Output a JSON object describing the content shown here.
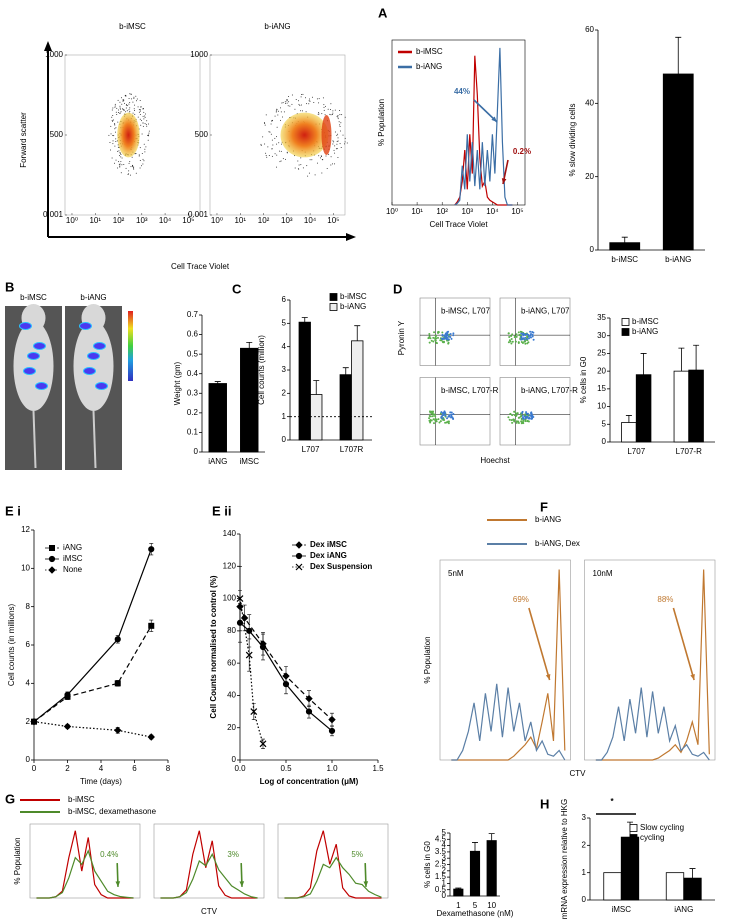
{
  "chart_data": [
    {
      "type": "flow",
      "panel": "A",
      "titles": [
        "b-iMSC",
        "b-iANG"
      ],
      "ylabel": "Forward scatter",
      "xlabel": "Cell Trace Violet",
      "ylim": [
        0,
        1000
      ],
      "yticks": [
        0.001,
        500,
        1000
      ],
      "xlim": [
        -0.3,
        5.5
      ],
      "xticks": [
        {
          "value": 0,
          "label": "10⁰"
        },
        {
          "value": 1,
          "label": "10¹"
        },
        {
          "value": 2,
          "label": "10²"
        },
        {
          "value": 3,
          "label": "10³"
        },
        {
          "value": 4,
          "label": "10⁴"
        },
        {
          "value": 5,
          "label": "10⁵"
        }
      ]
    },
    {
      "type": "histogram",
      "ylabel": "% Population",
      "xlabel": "Cell Trace Violet",
      "x": [
        2.5,
        2.6,
        2.7,
        2.8,
        2.9,
        3.0,
        3.1,
        3.2,
        3.3,
        3.4,
        3.5,
        3.6,
        3.7,
        3.8,
        3.9,
        4.0,
        4.1,
        4.2,
        4.3,
        4.4,
        4.5,
        4.6,
        4.7,
        4.8
      ],
      "series": [
        {
          "name": "b-iMSC",
          "color": "#c00000",
          "values": [
            0,
            2,
            5,
            15,
            35,
            10,
            45,
            20,
            95,
            70,
            30,
            12,
            15,
            5,
            3,
            2,
            1,
            0,
            0,
            0,
            0,
            0,
            0,
            0
          ]
        },
        {
          "name": "b-iANG",
          "color": "#3b6ea5",
          "values": [
            0,
            1,
            3,
            25,
            10,
            45,
            15,
            40,
            12,
            35,
            10,
            40,
            12,
            35,
            15,
            45,
            20,
            60,
            100,
            40,
            5,
            0,
            0,
            0
          ]
        }
      ],
      "annotations": [
        {
          "text": "44%",
          "color": "#3b6ea5"
        },
        {
          "text": "0.2%",
          "color": "#a01010"
        }
      ],
      "xlim": [
        0,
        5.3
      ],
      "ylim": [
        0,
        105
      ],
      "xticks": [
        {
          "value": 0,
          "label": "10⁰"
        },
        {
          "value": 1,
          "label": "10¹"
        },
        {
          "value": 2,
          "label": "10²"
        },
        {
          "value": 3,
          "label": "10³"
        },
        {
          "value": 4,
          "label": "10⁴"
        },
        {
          "value": 5,
          "label": "10⁵"
        }
      ]
    },
    {
      "type": "bar",
      "ylabel": "% slow dividing cells",
      "categories": [
        "b-iMSC",
        "b-iANG"
      ],
      "values": [
        2,
        48
      ],
      "errors": [
        1.5,
        10
      ],
      "color": "#000000",
      "ylim": [
        0,
        60
      ],
      "yticks": [
        0,
        20,
        40,
        60
      ]
    },
    {
      "type": "mouse-image",
      "panel": "B",
      "titles": [
        "b-iMSC",
        "b-iANG"
      ]
    },
    {
      "type": "bar",
      "ylabel": "Weight (gm)",
      "categories": [
        "iANG",
        "iMSC"
      ],
      "values": [
        0.35,
        0.53
      ],
      "errors": [
        0.01,
        0.03
      ],
      "color": "#000000",
      "ylim": [
        0,
        0.7
      ],
      "yticks": [
        0,
        0.1,
        0.2,
        0.3,
        0.4,
        0.5,
        0.6,
        0.7
      ]
    },
    {
      "type": "bar",
      "panel": "C",
      "ylabel": "Cell counts (million)",
      "categories": [
        "L707",
        "L707R"
      ],
      "series": [
        {
          "name": "b-iMSC",
          "color": "#000000",
          "values": [
            5.05,
            2.8
          ],
          "errors": [
            0.2,
            0.3
          ]
        },
        {
          "name": "b-iANG",
          "color": "#eeeeee",
          "values": [
            1.95,
            4.25
          ],
          "errors": [
            0.6,
            0.65
          ]
        }
      ],
      "reference_line": 1,
      "ylim": [
        0,
        6
      ],
      "yticks": [
        0,
        1,
        2,
        3,
        4,
        5,
        6
      ]
    },
    {
      "type": "quadrant",
      "panel": "D",
      "labels": [
        "b-iMSC, L707",
        "b-iANG, L707",
        "b-iMSC, L707-R",
        "b-iANG, L707-R"
      ],
      "ylabel": "Pyronin Y",
      "xlabel": "Hoechst"
    },
    {
      "type": "bar",
      "ylabel": "% cells in G0",
      "categories": [
        "L707",
        "L707-R"
      ],
      "series": [
        {
          "name": "b-iMSC",
          "color": "#ffffff",
          "values": [
            5.5,
            20
          ],
          "errors": [
            2,
            6.5
          ]
        },
        {
          "name": "b-iANG",
          "color": "#000000",
          "values": [
            19,
            20.3
          ],
          "errors": [
            6,
            7
          ]
        }
      ],
      "ylim": [
        0,
        35
      ],
      "yticks": [
        0,
        5,
        10,
        15,
        20,
        25,
        30,
        35
      ]
    },
    {
      "type": "line",
      "panel": "E i",
      "ylabel": "Cell counts (in millions)",
      "xlabel": "Time (days)",
      "x": [
        0,
        2,
        5,
        7
      ],
      "series": [
        {
          "name": "iANG",
          "color": "#000000",
          "line_style": "dashed",
          "marker": "square",
          "values": [
            2,
            3.3,
            4,
            7
          ],
          "errors": [
            0.1,
            0.15,
            0.15,
            0.3
          ]
        },
        {
          "name": "iMSC",
          "color": "#000000",
          "line_style": "solid",
          "marker": "circle",
          "values": [
            2,
            3.4,
            6.3,
            11
          ],
          "errors": [
            0.1,
            0.15,
            0.2,
            0.3
          ]
        },
        {
          "name": "None",
          "color": "#000000",
          "line_style": "dotted",
          "marker": "diamond",
          "values": [
            2,
            1.75,
            1.55,
            1.2
          ],
          "errors": [
            0.05,
            0.1,
            0.15,
            0.1
          ]
        }
      ],
      "xlim": [
        0,
        8
      ],
      "xticks": [
        0,
        2,
        4,
        6,
        8
      ],
      "ylim": [
        0,
        12
      ],
      "yticks": [
        0,
        2,
        4,
        6,
        8,
        10,
        12
      ]
    },
    {
      "type": "line",
      "panel": "E ii",
      "ylabel": "Cell Counts normalised to control (%)",
      "xlabel": "Log of concentration (μM)",
      "series": [
        {
          "name": "Dex iMSC",
          "color": "#000000",
          "line_style": "dashed",
          "marker": "diamond",
          "x": [
            0,
            0.05,
            0.25,
            0.5,
            0.75,
            1
          ],
          "values": [
            95,
            88,
            72,
            52,
            38,
            25
          ],
          "errors": [
            10,
            8,
            7,
            6,
            5,
            4
          ]
        },
        {
          "name": "Dex iANG",
          "color": "#000000",
          "line_style": "solid",
          "marker": "circle",
          "x": [
            0,
            0.1,
            0.25,
            0.5,
            0.75,
            1
          ],
          "values": [
            85,
            80,
            70,
            47,
            30,
            18
          ],
          "errors": [
            12,
            10,
            8,
            6,
            4,
            3
          ]
        },
        {
          "name": "Dex Suspension",
          "color": "#000000",
          "line_style": "dotted",
          "marker": "cross",
          "x": [
            0,
            0.1,
            0.15,
            0.25
          ],
          "values": [
            100,
            65,
            30,
            10
          ],
          "errors": [
            20,
            10,
            5,
            3
          ]
        }
      ],
      "xlim": [
        0,
        1.5
      ],
      "xticks": [
        {
          "value": 0,
          "label": "0.0"
        },
        0.5,
        {
          "value": 1,
          "label": "1.0"
        },
        1.5
      ],
      "ylim": [
        0,
        140
      ],
      "yticks": [
        0,
        20,
        40,
        60,
        80,
        100,
        120,
        140
      ]
    },
    {
      "type": "histogram-panels",
      "panel": "F",
      "ylabel": "% Population",
      "xlabel": "CTV",
      "series": [
        {
          "name": "b-iANG",
          "color": "#c07830"
        },
        {
          "name": "b-iANG, Dex",
          "color": "#5b7fa6"
        }
      ],
      "x": [
        3.0,
        3.1,
        3.2,
        3.3,
        3.4,
        3.5,
        3.6,
        3.7,
        3.8,
        3.9,
        4.0,
        4.1,
        4.2,
        4.3,
        4.4,
        4.5,
        4.6,
        4.7,
        4.8,
        4.9,
        5.0
      ],
      "panels": [
        {
          "label": "5nM",
          "annotation": "69%",
          "series": [
            {
              "values": [
                0,
                0,
                0,
                0,
                0,
                0,
                0,
                0,
                0,
                0,
                0,
                2,
                5,
                8,
                12,
                6,
                20,
                35,
                10,
                100,
                5
              ]
            },
            {
              "values": [
                0,
                0,
                5,
                15,
                30,
                10,
                35,
                15,
                40,
                12,
                38,
                15,
                30,
                10,
                20,
                5,
                10,
                3,
                2,
                5,
                0
              ]
            }
          ]
        },
        {
          "label": "10nM",
          "annotation": "88%",
          "series": [
            {
              "values": [
                0,
                0,
                0,
                0,
                0,
                0,
                0,
                0,
                0,
                0,
                0,
                1,
                3,
                5,
                8,
                4,
                10,
                20,
                8,
                100,
                3
              ]
            },
            {
              "values": [
                0,
                0,
                4,
                12,
                28,
                10,
                32,
                14,
                38,
                12,
                36,
                14,
                28,
                10,
                18,
                5,
                8,
                3,
                2,
                4,
                0
              ]
            }
          ]
        }
      ],
      "xlim": [
        2.8,
        5.1
      ],
      "ylim": [
        0,
        105
      ]
    },
    {
      "type": "histogram-panels",
      "panel": "G",
      "ylabel": "% Population",
      "xlabel": "CTV",
      "series": [
        {
          "name": "b-iMSC",
          "color": "#c00000"
        },
        {
          "name": "b-iMSC, dexamethasone",
          "color": "#4e8a2a"
        }
      ],
      "x": [
        2.0,
        2.2,
        2.4,
        2.6,
        2.8,
        3.0,
        3.2,
        3.4,
        3.6,
        3.8,
        4.0,
        4.2,
        4.4,
        4.6,
        4.8,
        5.0
      ],
      "panels": [
        {
          "annotation": "0.4%",
          "series": [
            {
              "values": [
                0,
                0,
                0,
                2,
                10,
                60,
                100,
                40,
                90,
                20,
                5,
                0,
                0,
                0,
                0,
                0
              ]
            },
            {
              "values": [
                0,
                0,
                0,
                2,
                8,
                30,
                60,
                50,
                70,
                40,
                25,
                10,
                5,
                2,
                1,
                0
              ]
            }
          ]
        },
        {
          "annotation": "3%",
          "series": [
            {
              "values": [
                0,
                0,
                0,
                2,
                12,
                65,
                100,
                45,
                85,
                18,
                4,
                0,
                0,
                0,
                0,
                0
              ]
            },
            {
              "values": [
                0,
                0,
                0,
                2,
                8,
                28,
                55,
                48,
                65,
                42,
                30,
                18,
                12,
                6,
                2,
                0
              ]
            }
          ]
        },
        {
          "annotation": "5%",
          "series": [
            {
              "values": [
                0,
                0,
                0,
                3,
                15,
                70,
                100,
                50,
                80,
                15,
                3,
                0,
                0,
                0,
                0,
                0
              ]
            },
            {
              "values": [
                0,
                0,
                0,
                2,
                6,
                25,
                50,
                45,
                60,
                45,
                35,
                22,
                20,
                10,
                5,
                1
              ]
            }
          ]
        }
      ],
      "xlim": [
        1.8,
        5.2
      ],
      "ylim": [
        0,
        110
      ]
    },
    {
      "type": "bar",
      "ylabel": "% cells in G0",
      "xlabel": "Dexamethasone (nM)",
      "categories": [
        "1",
        "5",
        "10"
      ],
      "values": [
        0.55,
        3.55,
        4.4
      ],
      "errors": [
        0.08,
        0.7,
        0.55
      ],
      "color": "#000000",
      "ylim": [
        0,
        5
      ],
      "yticks": [
        0,
        0.5,
        1,
        1.5,
        2,
        2.5,
        3,
        3.5,
        4,
        4.5,
        5
      ]
    },
    {
      "type": "bar",
      "panel": "H",
      "ylabel": "mRNA expression relative to HKG",
      "annotation": "*",
      "categories": [
        "iMSC",
        "iANG"
      ],
      "series": [
        {
          "name": "Slow cycling",
          "color": "#ffffff",
          "values": [
            1,
            1
          ]
        },
        {
          "name": "cycling",
          "color": "#000000",
          "values": [
            2.3,
            0.8
          ],
          "errors": [
            0.55,
            0.35
          ]
        }
      ],
      "ylim": [
        0,
        3
      ],
      "yticks": [
        0,
        1,
        2,
        3
      ]
    }
  ]
}
